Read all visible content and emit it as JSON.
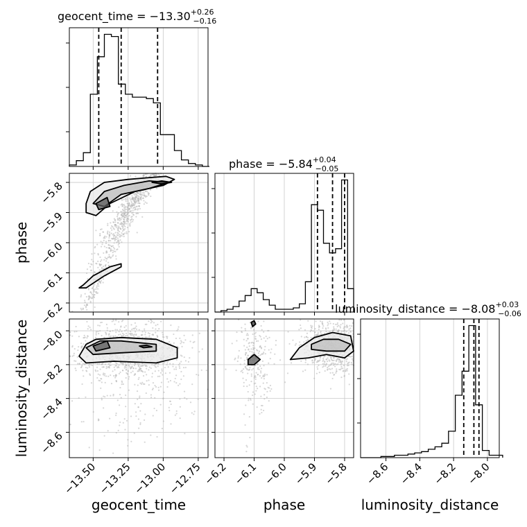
{
  "chart_data": {
    "type": "corner",
    "parameters": [
      {
        "name": "geocent_time",
        "axis_label": "geocent_time",
        "title": {
          "prefix": "geocent_time = ",
          "value": "−13.30",
          "sup": "+0.26",
          "sub": "−0.16"
        },
        "range": [
          -13.67,
          -12.68
        ],
        "ticks": [
          -13.5,
          -13.25,
          -13.0,
          -12.75
        ],
        "tick_labels": [
          "−13.50",
          "−13.25",
          "−13.00",
          "−12.75"
        ],
        "quantiles": [
          -13.46,
          -13.3,
          -13.04
        ]
      },
      {
        "name": "phase",
        "axis_label": "phase",
        "title": {
          "prefix": "phase = ",
          "value": "−5.84",
          "sup": "+0.04",
          "sub": "−0.05"
        },
        "range": [
          -6.23,
          -5.77
        ],
        "ticks": [
          -6.2,
          -6.1,
          -6.0,
          -5.9,
          -5.8
        ],
        "tick_labels": [
          "−6.2",
          "−6.1",
          "−6.0",
          "−5.9",
          "−5.8"
        ],
        "quantiles": [
          -5.89,
          -5.84,
          -5.8
        ]
      },
      {
        "name": "luminosity_distance",
        "axis_label": "luminosity_distance",
        "title": {
          "prefix": "luminosity_distance = ",
          "value": "−8.08",
          "sup": "+0.03",
          "sub": "−0.06"
        },
        "range": [
          -8.75,
          -7.93
        ],
        "ticks": [
          -8.6,
          -8.4,
          -8.2,
          -8.0
        ],
        "tick_labels": [
          "−8.6",
          "−8.4",
          "−8.2",
          "−8.0"
        ],
        "quantiles": [
          -8.14,
          -8.08,
          -8.05
        ]
      }
    ],
    "histograms": [
      {
        "param": "geocent_time",
        "bins": [
          -13.67,
          -13.62,
          -13.57,
          -13.52,
          -13.47,
          -13.42,
          -13.37,
          -13.32,
          -13.27,
          -13.22,
          -13.17,
          -13.12,
          -13.07,
          -13.02,
          -12.97,
          -12.92,
          -12.87,
          -12.82,
          -12.77,
          -12.72,
          -12.67
        ],
        "counts": [
          2,
          8,
          19,
          100,
          152,
          183,
          180,
          114,
          100,
          96,
          96,
          94,
          88,
          44,
          44,
          22,
          9,
          4,
          2,
          0
        ]
      },
      {
        "param": "phase",
        "bins": [
          -6.23,
          -6.21,
          -6.19,
          -6.17,
          -6.15,
          -6.13,
          -6.11,
          -6.09,
          -6.07,
          -6.05,
          -6.03,
          -6.01,
          -5.99,
          -5.97,
          -5.95,
          -5.93,
          -5.91,
          -5.89,
          -5.87,
          -5.85,
          -5.83,
          -5.81,
          -5.79,
          -5.77
        ],
        "counts": [
          0,
          1,
          2,
          4,
          8,
          12,
          17,
          14,
          9,
          5,
          2,
          2,
          2,
          3,
          6,
          22,
          78,
          74,
          50,
          43,
          46,
          96,
          17
        ]
      },
      {
        "param": "luminosity_distance",
        "bins": [
          -8.75,
          -8.71,
          -8.67,
          -8.63,
          -8.59,
          -8.55,
          -8.51,
          -8.47,
          -8.43,
          -8.39,
          -8.35,
          -8.31,
          -8.27,
          -8.23,
          -8.19,
          -8.15,
          -8.11,
          -8.07,
          -8.03,
          -7.99,
          -7.95,
          -7.91
        ],
        "counts": [
          0,
          0,
          0,
          1,
          1,
          2,
          2,
          3,
          4,
          5,
          7,
          9,
          12,
          22,
          52,
          72,
          110,
          44,
          6,
          2,
          2
        ]
      }
    ],
    "contours": [
      {
        "x": "geocent_time",
        "y": "phase",
        "levels": [
          [
            [
              -13.55,
              -5.87
            ],
            [
              -13.52,
              -5.83
            ],
            [
              -13.42,
              -5.8
            ],
            [
              -13.25,
              -5.79
            ],
            [
              -13.12,
              -5.785
            ],
            [
              -12.98,
              -5.78
            ],
            [
              -12.92,
              -5.79
            ],
            [
              -13.0,
              -5.81
            ],
            [
              -13.2,
              -5.83
            ],
            [
              -13.38,
              -5.87
            ],
            [
              -13.48,
              -5.91
            ],
            [
              -13.55,
              -5.9
            ]
          ],
          [
            [
              -13.5,
              -5.87
            ],
            [
              -13.42,
              -5.83
            ],
            [
              -13.28,
              -5.81
            ],
            [
              -13.1,
              -5.795
            ],
            [
              -12.96,
              -5.8
            ],
            [
              -13.1,
              -5.82
            ],
            [
              -13.3,
              -5.84
            ],
            [
              -13.42,
              -5.88
            ]
          ],
          [
            [
              -13.48,
              -5.87
            ],
            [
              -13.4,
              -5.85
            ],
            [
              -13.38,
              -5.88
            ],
            [
              -13.46,
              -5.89
            ]
          ],
          [
            [
              -13.08,
              -5.8
            ],
            [
              -13.01,
              -5.795
            ],
            [
              -12.94,
              -5.8
            ],
            [
              -13.01,
              -5.805
            ]
          ],
          [
            [
              -13.57,
              -6.14
            ],
            [
              -13.5,
              -6.11
            ],
            [
              -13.38,
              -6.08
            ],
            [
              -13.3,
              -6.07
            ],
            [
              -13.3,
              -6.08
            ],
            [
              -13.42,
              -6.11
            ],
            [
              -13.55,
              -6.15
            ],
            [
              -13.6,
              -6.15
            ]
          ]
        ]
      },
      {
        "x": "geocent_time",
        "y": "luminosity_distance",
        "levels": [
          [
            [
              -13.6,
              -8.15
            ],
            [
              -13.55,
              -8.08
            ],
            [
              -13.48,
              -8.05
            ],
            [
              -13.3,
              -8.04
            ],
            [
              -13.05,
              -8.05
            ],
            [
              -12.9,
              -8.1
            ],
            [
              -12.9,
              -8.16
            ],
            [
              -13.05,
              -8.19
            ],
            [
              -13.35,
              -8.18
            ],
            [
              -13.55,
              -8.19
            ]
          ],
          [
            [
              -13.55,
              -8.1
            ],
            [
              -13.45,
              -8.06
            ],
            [
              -13.3,
              -8.06
            ],
            [
              -13.05,
              -8.08
            ],
            [
              -13.05,
              -8.12
            ],
            [
              -13.3,
              -8.13
            ],
            [
              -13.5,
              -8.14
            ]
          ],
          [
            [
              -13.5,
              -8.09
            ],
            [
              -13.4,
              -8.06
            ],
            [
              -13.38,
              -8.1
            ],
            [
              -13.48,
              -8.12
            ]
          ],
          [
            [
              -13.17,
              -8.09
            ],
            [
              -13.12,
              -8.085
            ],
            [
              -13.08,
              -8.095
            ],
            [
              -13.14,
              -8.1
            ]
          ]
        ]
      },
      {
        "x": "phase",
        "y": "luminosity_distance",
        "levels": [
          [
            [
              -5.98,
              -8.17
            ],
            [
              -5.95,
              -8.1
            ],
            [
              -5.9,
              -8.04
            ],
            [
              -5.84,
              -8.01
            ],
            [
              -5.78,
              -8.03
            ],
            [
              -5.77,
              -8.12
            ],
            [
              -5.8,
              -8.16
            ],
            [
              -5.86,
              -8.14
            ],
            [
              -5.92,
              -8.16
            ]
          ],
          [
            [
              -5.91,
              -8.08
            ],
            [
              -5.87,
              -8.05
            ],
            [
              -5.82,
              -8.05
            ],
            [
              -5.78,
              -8.08
            ],
            [
              -5.8,
              -8.12
            ],
            [
              -5.86,
              -8.12
            ],
            [
              -5.91,
              -8.11
            ]
          ],
          [
            [
              -6.12,
              -8.17
            ],
            [
              -6.1,
              -8.14
            ],
            [
              -6.08,
              -8.17
            ],
            [
              -6.1,
              -8.2
            ],
            [
              -6.12,
              -8.2
            ]
          ],
          [
            [
              -6.11,
              -7.95
            ],
            [
              -6.1,
              -7.94
            ],
            [
              -6.095,
              -7.96
            ],
            [
              -6.105,
              -7.975
            ]
          ]
        ]
      }
    ],
    "grid": true
  }
}
